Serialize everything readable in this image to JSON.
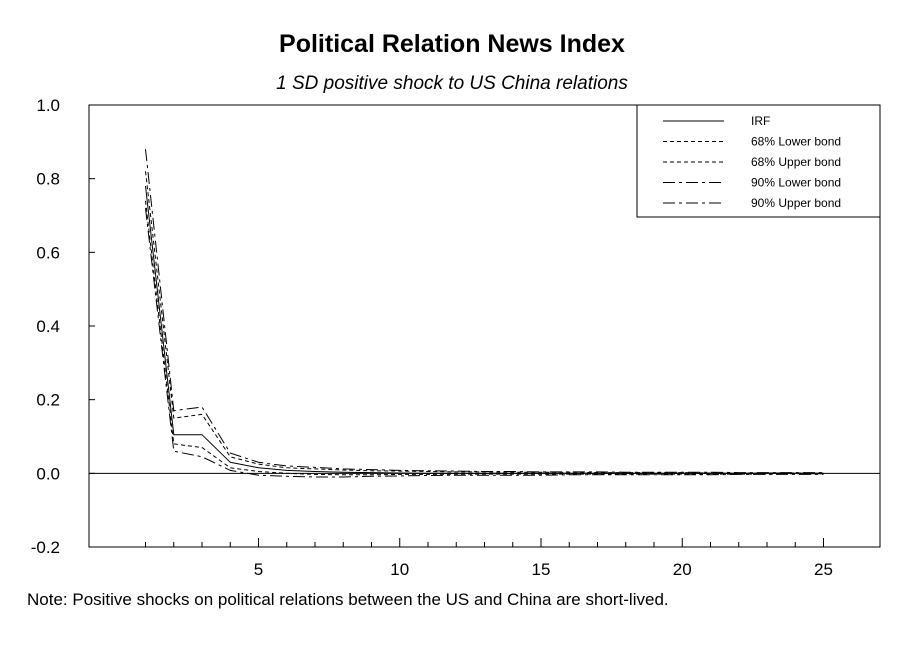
{
  "title": "Political Relation News Index",
  "subtitle": "1 SD positive shock to US China relations",
  "note": "Note: Positive shocks on political relations between the US and China are short-lived.",
  "chart_data": {
    "type": "line",
    "xlabel": "",
    "ylabel": "",
    "xlim": [
      -1,
      27
    ],
    "ylim": [
      -0.2,
      1.0
    ],
    "x": [
      1,
      2,
      3,
      4,
      5,
      6,
      7,
      8,
      9,
      10,
      11,
      12,
      13,
      14,
      15,
      16,
      17,
      18,
      19,
      20,
      21,
      22,
      23,
      24,
      25
    ],
    "x_ticks": [
      5,
      10,
      15,
      20,
      25
    ],
    "x_tick_labels": [
      "5",
      "10",
      "15",
      "20",
      "25"
    ],
    "y_ticks": [
      -0.2,
      0.0,
      0.2,
      0.4,
      0.6,
      0.8,
      1.0
    ],
    "y_tick_labels": [
      "-0.2",
      "0.0",
      "0.2",
      "0.4",
      "0.6",
      "0.8",
      "1.0"
    ],
    "zero_line": true,
    "grid": false,
    "legend_position": "top-right",
    "series": [
      {
        "name": "IRF",
        "style": "solid",
        "values": [
          0.78,
          0.105,
          0.105,
          0.03,
          0.015,
          0.008,
          0.005,
          0.003,
          0.002,
          0.001,
          0.0,
          0.0,
          0.0,
          0.0,
          0.0,
          0.0,
          0.0,
          0.0,
          0.0,
          0.0,
          0.0,
          0.0,
          0.0,
          0.0,
          0.0
        ]
      },
      {
        "name": "68% Lower bond",
        "style": "dashed",
        "values": [
          0.74,
          0.08,
          0.07,
          0.015,
          0.005,
          0.0,
          -0.003,
          -0.004,
          -0.004,
          -0.003,
          -0.003,
          -0.002,
          -0.002,
          -0.002,
          -0.002,
          -0.002,
          -0.002,
          -0.002,
          -0.002,
          -0.002,
          -0.002,
          -0.002,
          -0.002,
          -0.001,
          -0.001
        ]
      },
      {
        "name": "68% Upper bond",
        "style": "dashed",
        "values": [
          0.82,
          0.15,
          0.16,
          0.045,
          0.025,
          0.015,
          0.012,
          0.009,
          0.007,
          0.006,
          0.005,
          0.004,
          0.004,
          0.003,
          0.003,
          0.003,
          0.002,
          0.002,
          0.002,
          0.002,
          0.001,
          0.001,
          0.001,
          0.001,
          0.001
        ]
      },
      {
        "name": "90% Lower bond",
        "style": "dashdot",
        "values": [
          0.72,
          0.06,
          0.045,
          0.008,
          -0.005,
          -0.008,
          -0.01,
          -0.01,
          -0.008,
          -0.007,
          -0.006,
          -0.005,
          -0.005,
          -0.005,
          -0.005,
          -0.004,
          -0.004,
          -0.004,
          -0.004,
          -0.004,
          -0.004,
          -0.003,
          -0.003,
          -0.003,
          -0.003
        ]
      },
      {
        "name": "90% Upper bond",
        "style": "dashdot",
        "values": [
          0.88,
          0.17,
          0.18,
          0.055,
          0.03,
          0.02,
          0.016,
          0.012,
          0.01,
          0.008,
          0.007,
          0.006,
          0.005,
          0.005,
          0.004,
          0.004,
          0.004,
          0.003,
          0.003,
          0.003,
          0.003,
          0.002,
          0.002,
          0.002,
          0.002
        ]
      }
    ]
  }
}
